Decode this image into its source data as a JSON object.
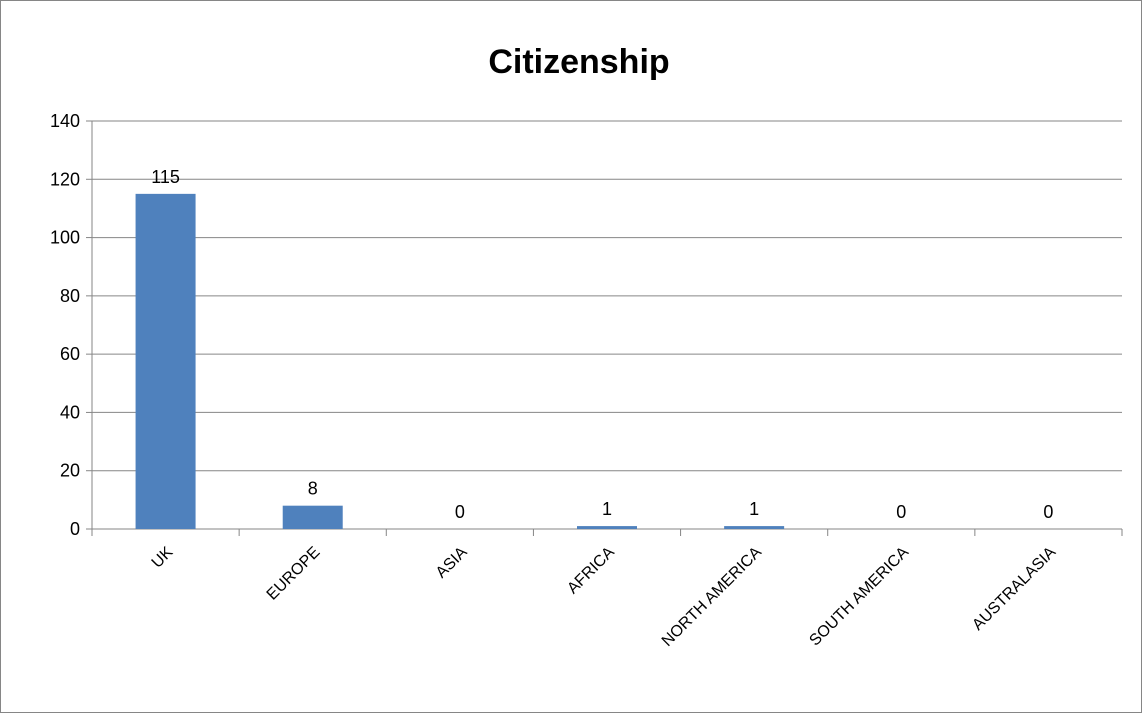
{
  "chart_data": {
    "type": "bar",
    "title": "Citizenship",
    "xlabel": "",
    "ylabel": "",
    "categories": [
      "UK",
      "EUROPE",
      "ASIA",
      "AFRICA",
      "NORTH AMERICA",
      "SOUTH AMERICA",
      "AUSTRALASIA"
    ],
    "values": [
      115,
      8,
      0,
      1,
      1,
      0,
      0
    ],
    "data_labels": [
      "115",
      "8",
      "0",
      "1",
      "1",
      "0",
      "0"
    ],
    "ylim": [
      0,
      140
    ],
    "yticks": [
      "0",
      "20",
      "40",
      "60",
      "80",
      "100",
      "120",
      "140"
    ],
    "grid": true,
    "legend": "none",
    "colors": {
      "bar": "#4f81bd",
      "grid": "#868686",
      "axis": "#868686",
      "border": "#868686"
    }
  }
}
